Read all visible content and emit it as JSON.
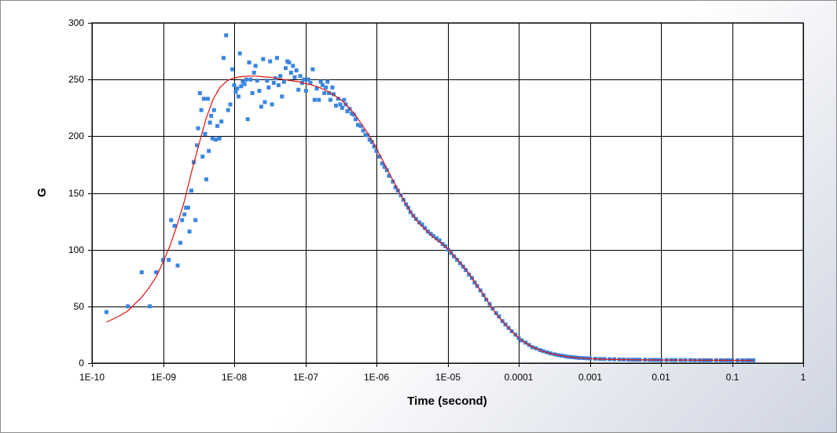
{
  "chart_data": {
    "type": "scatter",
    "xlabel": "Time (second)",
    "ylabel": "G",
    "x_scale": "log",
    "xlim": [
      1e-10,
      1
    ],
    "ylim": [
      0,
      300
    ],
    "x_ticks": [
      1e-10,
      1e-09,
      1e-08,
      1e-07,
      1e-06,
      1e-05,
      0.0001,
      0.001,
      0.01,
      0.1,
      1
    ],
    "x_tick_labels": [
      "1E-10",
      "1E-09",
      "1E-08",
      "1E-07",
      "1E-06",
      "1E-05",
      "0.0001",
      "0.001",
      "0.01",
      "0.1",
      "1"
    ],
    "y_ticks": [
      0,
      50,
      100,
      150,
      200,
      250,
      300
    ],
    "y_tick_labels": [
      "0",
      "50",
      "100",
      "150",
      "200",
      "250",
      "300"
    ],
    "grid": true,
    "series": [
      {
        "kind": "scatter",
        "color": "#3a86e0",
        "points": [
          [
            1.6e-10,
            45
          ],
          [
            3.2e-10,
            50
          ],
          [
            5e-10,
            80
          ],
          [
            6.5e-10,
            50
          ],
          [
            8e-10,
            80
          ],
          [
            1e-09,
            91
          ],
          [
            1.2e-09,
            91
          ],
          [
            1.3e-09,
            126
          ],
          [
            1.45e-09,
            121
          ],
          [
            1.6e-09,
            86
          ],
          [
            1.75e-09,
            106
          ],
          [
            1.85e-09,
            126
          ],
          [
            2e-09,
            131
          ],
          [
            2.1e-09,
            137
          ],
          [
            2.25e-09,
            137
          ],
          [
            2.35e-09,
            116
          ],
          [
            2.5e-09,
            152
          ],
          [
            2.7e-09,
            177
          ],
          [
            2.85e-09,
            126
          ],
          [
            3e-09,
            192
          ],
          [
            3.1e-09,
            207
          ],
          [
            3.3e-09,
            238
          ],
          [
            3.45e-09,
            223
          ],
          [
            3.6e-09,
            182
          ],
          [
            3.75e-09,
            233
          ],
          [
            3.9e-09,
            202
          ],
          [
            4.05e-09,
            162
          ],
          [
            4.25e-09,
            233
          ],
          [
            4.4e-09,
            187
          ],
          [
            4.55e-09,
            212
          ],
          [
            4.75e-09,
            218
          ],
          [
            4.95e-09,
            198
          ],
          [
            5.2e-09,
            223
          ],
          [
            5.5e-09,
            197
          ],
          [
            5.8e-09,
            209
          ],
          [
            6.2e-09,
            198
          ],
          [
            6.6e-09,
            213
          ],
          [
            7.1e-09,
            269
          ],
          [
            7.7e-09,
            289
          ],
          [
            8.2e-09,
            223
          ],
          [
            8.8e-09,
            228
          ],
          [
            9.4e-09,
            259
          ],
          [
            1e-08,
            245
          ],
          [
            1.05e-08,
            239
          ],
          [
            1.1e-08,
            242
          ],
          [
            1.15e-08,
            235
          ],
          [
            1.2e-08,
            273
          ],
          [
            1.25e-08,
            244
          ],
          [
            1.32e-08,
            248
          ],
          [
            1.4e-08,
            246
          ],
          [
            1.48e-08,
            250
          ],
          [
            1.55e-08,
            215
          ],
          [
            1.62e-08,
            265
          ],
          [
            1.7e-08,
            250
          ],
          [
            1.8e-08,
            238
          ],
          [
            1.9e-08,
            256
          ],
          [
            2e-08,
            262
          ],
          [
            2.1e-08,
            249
          ],
          [
            2.25e-08,
            240
          ],
          [
            2.4e-08,
            226
          ],
          [
            2.55e-08,
            268
          ],
          [
            2.7e-08,
            230
          ],
          [
            2.9e-08,
            249
          ],
          [
            3.05e-08,
            243
          ],
          [
            3.2e-08,
            266
          ],
          [
            3.4e-08,
            228
          ],
          [
            3.6e-08,
            247
          ],
          [
            3.8e-08,
            251
          ],
          [
            4e-08,
            269
          ],
          [
            4.2e-08,
            245
          ],
          [
            4.45e-08,
            253
          ],
          [
            4.7e-08,
            235
          ],
          [
            5e-08,
            248
          ],
          [
            5.3e-08,
            260
          ],
          [
            5.6e-08,
            266
          ],
          [
            5.9e-08,
            265
          ],
          [
            6.3e-08,
            256
          ],
          [
            6.7e-08,
            262
          ],
          [
            7.1e-08,
            252
          ],
          [
            7.5e-08,
            258
          ],
          [
            8e-08,
            241
          ],
          [
            8.5e-08,
            253
          ],
          [
            9e-08,
            247
          ],
          [
            9.6e-08,
            250
          ],
          [
            1.02e-07,
            240
          ],
          [
            1.1e-07,
            250
          ],
          [
            1.18e-07,
            247
          ],
          [
            1.27e-07,
            259
          ],
          [
            1.35e-07,
            232
          ],
          [
            1.45e-07,
            242
          ],
          [
            1.55e-07,
            232
          ],
          [
            1.65e-07,
            248
          ],
          [
            1.75e-07,
            245
          ],
          [
            1.85e-07,
            238
          ],
          [
            1.95e-07,
            243
          ],
          [
            2.05e-07,
            248
          ],
          [
            2.15e-07,
            238
          ],
          [
            2.25e-07,
            232
          ],
          [
            2.4e-07,
            243
          ],
          [
            2.5e-07,
            237
          ],
          [
            2.7e-07,
            227
          ],
          [
            2.9e-07,
            233
          ],
          [
            3.1e-07,
            228
          ],
          [
            3.3e-07,
            225
          ],
          [
            3.5e-07,
            232
          ],
          [
            3.7e-07,
            228
          ],
          [
            3.9e-07,
            222
          ],
          [
            4.2e-07,
            224
          ],
          [
            4.5e-07,
            220
          ],
          [
            4.8e-07,
            219
          ],
          [
            5.1e-07,
            215
          ],
          [
            5.5e-07,
            210
          ],
          [
            6e-07,
            209
          ],
          [
            6.5e-07,
            205
          ],
          [
            7e-07,
            201
          ],
          [
            7.5e-07,
            201
          ],
          [
            8e-07,
            197
          ],
          [
            8.6e-07,
            195
          ],
          [
            9.3e-07,
            191
          ],
          [
            1e-06,
            187
          ],
          [
            1.1e-06,
            182
          ],
          [
            1.2e-06,
            176
          ],
          [
            1.3e-06,
            173
          ],
          [
            1.4e-06,
            170
          ],
          [
            1.5e-06,
            165
          ],
          [
            1.7e-06,
            160
          ],
          [
            1.85e-06,
            155
          ],
          [
            2e-06,
            152
          ],
          [
            2.2e-06,
            148
          ],
          [
            2.4e-06,
            144
          ],
          [
            2.6e-06,
            140
          ],
          [
            2.8e-06,
            137
          ],
          [
            3e-06,
            133
          ],
          [
            3.3e-06,
            130
          ],
          [
            3.6e-06,
            127
          ],
          [
            4e-06,
            124
          ],
          [
            4.4e-06,
            122
          ],
          [
            4.8e-06,
            119
          ],
          [
            5.3e-06,
            116
          ],
          [
            5.8e-06,
            114
          ],
          [
            6.3e-06,
            112
          ],
          [
            7e-06,
            110
          ],
          [
            7.7e-06,
            108
          ],
          [
            8.5e-06,
            105
          ],
          [
            9.3e-06,
            103
          ],
          [
            1.02e-05,
            100
          ],
          [
            1.12e-05,
            97
          ],
          [
            1.23e-05,
            94
          ],
          [
            1.36e-05,
            91
          ],
          [
            1.5e-05,
            88
          ],
          [
            1.65e-05,
            85
          ],
          [
            1.8e-05,
            82
          ],
          [
            2e-05,
            78
          ],
          [
            2.2e-05,
            75
          ],
          [
            2.4e-05,
            71
          ],
          [
            2.6e-05,
            68
          ],
          [
            2.9e-05,
            64
          ],
          [
            3.2e-05,
            60
          ],
          [
            3.5e-05,
            56
          ],
          [
            3.9e-05,
            52
          ],
          [
            4.3e-05,
            48
          ],
          [
            4.8e-05,
            44
          ],
          [
            5.3e-05,
            41
          ],
          [
            5.9e-05,
            37
          ],
          [
            6.5e-05,
            34
          ],
          [
            7.2e-05,
            31
          ],
          [
            8e-05,
            28
          ],
          [
            9e-05,
            25
          ],
          [
            0.0001,
            22
          ],
          [
            0.00011,
            20
          ],
          [
            0.000125,
            18
          ],
          [
            0.00014,
            16
          ],
          [
            0.000155,
            14
          ],
          [
            0.000175,
            13
          ],
          [
            0.0002,
            11.5
          ],
          [
            0.00022,
            10.5
          ],
          [
            0.00025,
            9.5
          ],
          [
            0.00028,
            8.5
          ],
          [
            0.00032,
            7.7
          ],
          [
            0.00036,
            7
          ],
          [
            0.0004,
            6.5
          ],
          [
            0.00045,
            6
          ],
          [
            0.0005,
            5.5
          ],
          [
            0.00056,
            5.2
          ],
          [
            0.00063,
            4.9
          ],
          [
            0.0007,
            4.6
          ],
          [
            0.0008,
            4.4
          ],
          [
            0.0009,
            4.2
          ],
          [
            0.001,
            4
          ],
          [
            0.0012,
            3.8
          ],
          [
            0.0014,
            3.6
          ],
          [
            0.0016,
            3.5
          ],
          [
            0.0019,
            3.4
          ],
          [
            0.0022,
            3.3
          ],
          [
            0.0026,
            3.2
          ],
          [
            0.003,
            3.1
          ],
          [
            0.0035,
            3
          ],
          [
            0.004,
            3
          ],
          [
            0.0045,
            3
          ],
          [
            0.005,
            2.9
          ],
          [
            0.006,
            2.9
          ],
          [
            0.007,
            2.8
          ],
          [
            0.008,
            2.8
          ],
          [
            0.009,
            2.8
          ],
          [
            0.01,
            2.7
          ],
          [
            0.012,
            2.7
          ],
          [
            0.014,
            2.7
          ],
          [
            0.016,
            2.6
          ],
          [
            0.019,
            2.6
          ],
          [
            0.022,
            2.6
          ],
          [
            0.026,
            2.6
          ],
          [
            0.03,
            2.5
          ],
          [
            0.035,
            2.5
          ],
          [
            0.04,
            2.5
          ],
          [
            0.045,
            2.5
          ],
          [
            0.05,
            2.5
          ],
          [
            0.06,
            2.5
          ],
          [
            0.07,
            2.5
          ],
          [
            0.08,
            2.5
          ],
          [
            0.09,
            2.5
          ],
          [
            0.1,
            2.4
          ],
          [
            0.12,
            2.4
          ],
          [
            0.14,
            2.4
          ],
          [
            0.16,
            2.4
          ],
          [
            0.18,
            2.4
          ],
          [
            0.2,
            2.4
          ]
        ]
      },
      {
        "kind": "line",
        "color": "#e01010",
        "points": [
          [
            1.6e-10,
            36
          ],
          [
            2.5e-10,
            42
          ],
          [
            3.2e-10,
            46
          ],
          [
            4e-10,
            52
          ],
          [
            5e-10,
            58
          ],
          [
            6.3e-10,
            66
          ],
          [
            8e-10,
            76
          ],
          [
            1e-09,
            89
          ],
          [
            1.26e-09,
            104
          ],
          [
            1.58e-09,
            122
          ],
          [
            2e-09,
            143
          ],
          [
            2.5e-09,
            168
          ],
          [
            3.2e-09,
            193
          ],
          [
            4e-09,
            215
          ],
          [
            5e-09,
            232
          ],
          [
            6.3e-09,
            243
          ],
          [
            8e-09,
            249
          ],
          [
            1e-08,
            251.5
          ],
          [
            1.26e-08,
            252.5
          ],
          [
            1.58e-08,
            253
          ],
          [
            2e-08,
            253
          ],
          [
            2.5e-08,
            252.5
          ],
          [
            3.2e-08,
            252
          ],
          [
            4e-08,
            251
          ],
          [
            5e-08,
            250
          ],
          [
            6.3e-08,
            249
          ],
          [
            8e-08,
            248
          ],
          [
            1e-07,
            246.5
          ],
          [
            1.26e-07,
            245
          ],
          [
            1.58e-07,
            243
          ],
          [
            2e-07,
            240
          ],
          [
            2.5e-07,
            236.5
          ],
          [
            3.2e-07,
            232
          ],
          [
            4e-07,
            226
          ],
          [
            5e-07,
            219
          ],
          [
            6.3e-07,
            210
          ],
          [
            8e-07,
            200
          ],
          [
            1e-06,
            189
          ],
          [
            1.26e-06,
            177
          ],
          [
            1.58e-06,
            165
          ],
          [
            2e-06,
            153
          ],
          [
            2.5e-06,
            142
          ],
          [
            3.2e-06,
            131
          ],
          [
            4e-06,
            123
          ],
          [
            5e-06,
            117
          ],
          [
            6.3e-06,
            111
          ],
          [
            8e-06,
            106
          ],
          [
            1e-05,
            101
          ],
          [
            1.26e-05,
            94
          ],
          [
            1.58e-05,
            87
          ],
          [
            2e-05,
            79
          ],
          [
            2.5e-05,
            70
          ],
          [
            3.2e-05,
            60
          ],
          [
            4e-05,
            51
          ],
          [
            5e-05,
            42
          ],
          [
            6.3e-05,
            35
          ],
          [
            8e-05,
            28
          ],
          [
            0.0001,
            22
          ],
          [
            0.000126,
            17.5
          ],
          [
            0.000158,
            14
          ],
          [
            0.0002,
            11.2
          ],
          [
            0.00025,
            9.2
          ],
          [
            0.00032,
            7.6
          ],
          [
            0.0004,
            6.4
          ],
          [
            0.0005,
            5.5
          ],
          [
            0.00063,
            4.8
          ],
          [
            0.0008,
            4.3
          ],
          [
            0.001,
            3.9
          ],
          [
            0.0016,
            3.4
          ],
          [
            0.0025,
            3.1
          ],
          [
            0.004,
            2.9
          ],
          [
            0.0063,
            2.8
          ],
          [
            0.01,
            2.7
          ],
          [
            0.016,
            2.6
          ],
          [
            0.025,
            2.6
          ],
          [
            0.04,
            2.5
          ],
          [
            0.063,
            2.5
          ],
          [
            0.1,
            2.4
          ],
          [
            0.16,
            2.4
          ],
          [
            0.2,
            2.4
          ]
        ]
      }
    ]
  }
}
